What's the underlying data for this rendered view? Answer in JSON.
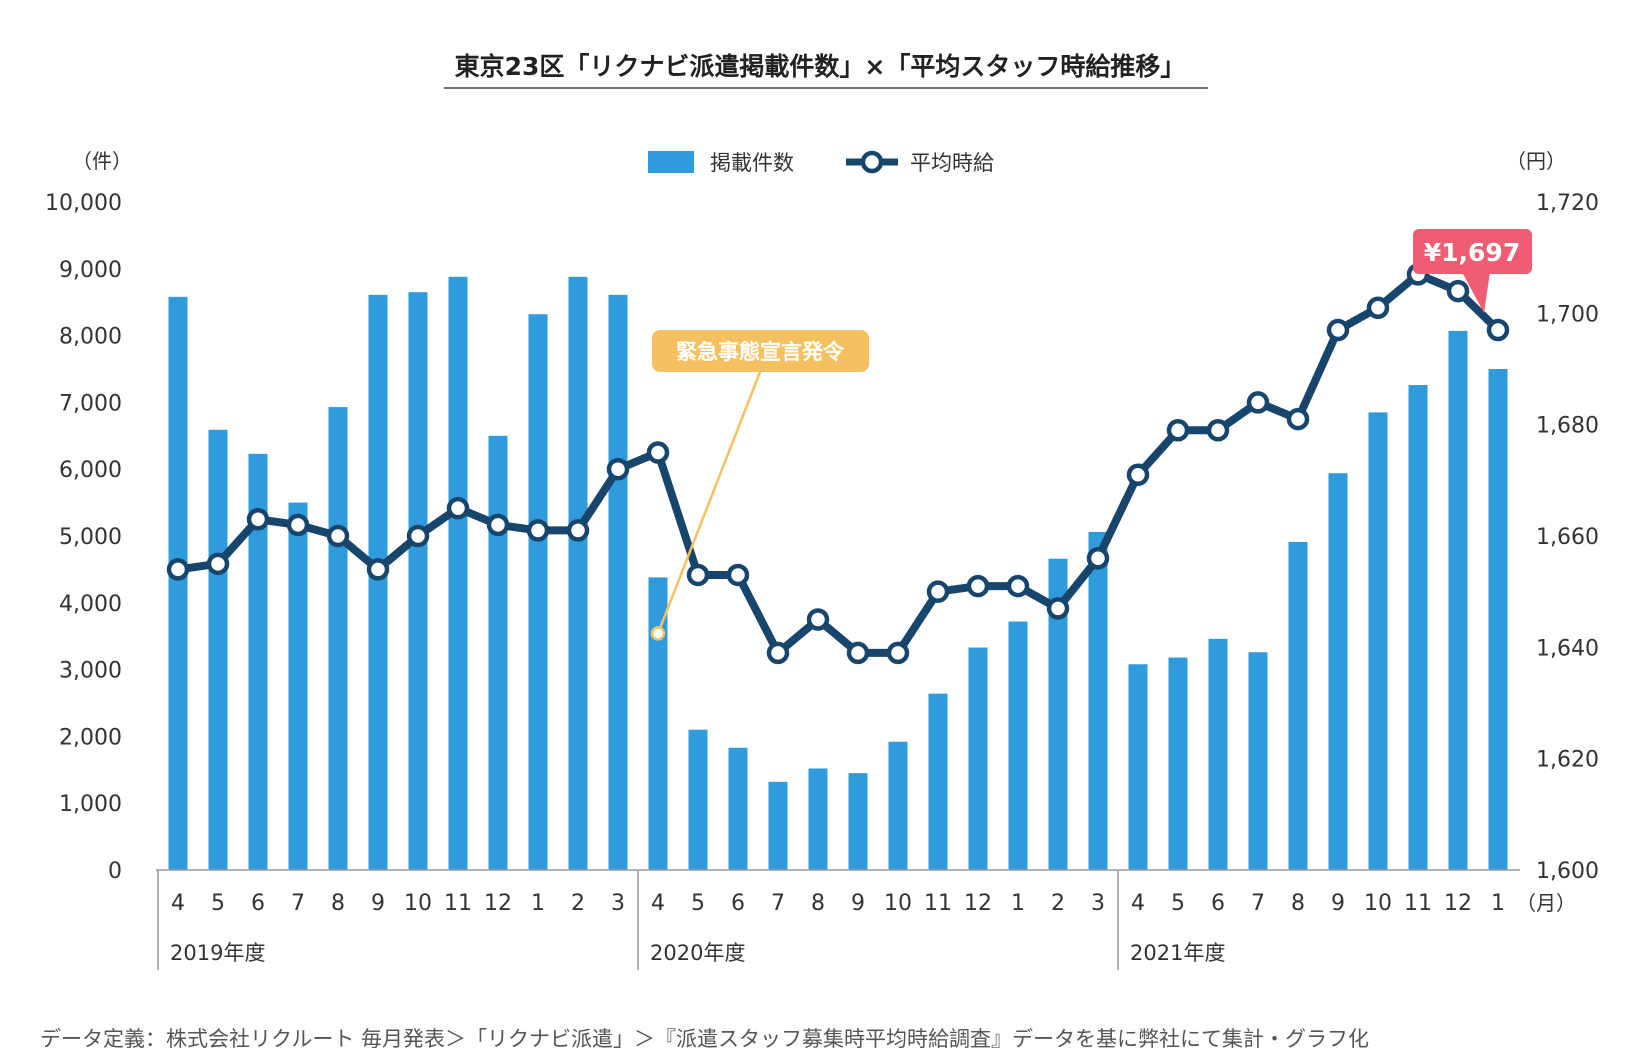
{
  "chart_data": {
    "type": "bar+line",
    "title": "東京23区「リクナビ派遣掲載件数」×「平均スタッフ時給推移」",
    "left_unit": "（件）",
    "right_unit": "（円）",
    "month_unit": "（月）",
    "legend": [
      {
        "name": "掲載件数",
        "color": "#2f9bdc",
        "kind": "bar"
      },
      {
        "name": "平均時給",
        "color": "#17456b",
        "kind": "line"
      }
    ],
    "y_left": {
      "min": 0,
      "max": 10000,
      "ticks": [
        "0",
        "1,000",
        "2,000",
        "3,000",
        "4,000",
        "5,000",
        "6,000",
        "7,000",
        "8,000",
        "9,000",
        "10,000"
      ]
    },
    "y_right": {
      "min": 1600,
      "max": 1720,
      "ticks": [
        "1,600",
        "1,620",
        "1,640",
        "1,660",
        "1,680",
        "1,700",
        "1,720"
      ]
    },
    "months": [
      "4",
      "5",
      "6",
      "7",
      "8",
      "9",
      "10",
      "11",
      "12",
      "1",
      "2",
      "3",
      "4",
      "5",
      "6",
      "7",
      "8",
      "9",
      "10",
      "11",
      "12",
      "1",
      "2",
      "3",
      "4",
      "5",
      "6",
      "7",
      "8",
      "9",
      "10",
      "11",
      "12",
      "1"
    ],
    "fiscal_years": [
      {
        "label": "2019年度",
        "start_index": 0
      },
      {
        "label": "2020年度",
        "start_index": 12
      },
      {
        "label": "2021年度",
        "start_index": 24
      }
    ],
    "series": [
      {
        "name": "掲載件数",
        "values": [
          8580,
          6590,
          6230,
          5500,
          6930,
          8610,
          8650,
          8880,
          6500,
          8320,
          8880,
          8610,
          4380,
          2100,
          1830,
          1320,
          1520,
          1450,
          1920,
          2640,
          3330,
          3720,
          4660,
          5060,
          3080,
          3180,
          3460,
          3260,
          4910,
          5940,
          6850,
          7260,
          8070,
          7500
        ]
      },
      {
        "name": "平均時給",
        "values": [
          1654,
          1655,
          1663,
          1662,
          1660,
          1654,
          1660,
          1665,
          1662,
          1661,
          1661,
          1672,
          1675,
          1653,
          1653,
          1639,
          1645,
          1639,
          1639,
          1650,
          1651,
          1651,
          1647,
          1656,
          1671,
          1679,
          1679,
          1684,
          1681,
          1697,
          1701,
          1707,
          1704,
          1697
        ]
      }
    ],
    "annotations": [
      {
        "text": "緊急事態宣言発令",
        "index": 12,
        "color": "#f5c060"
      },
      {
        "text": "¥1,697",
        "index": 33,
        "color": "#ef5d73"
      }
    ]
  },
  "source_note": "データ定義：株式会社リクルート 毎月発表＞「リクナビ派遣」＞『派遣スタッフ募集時平均時給調査』データを基に弊社にて集計・グラフ化"
}
